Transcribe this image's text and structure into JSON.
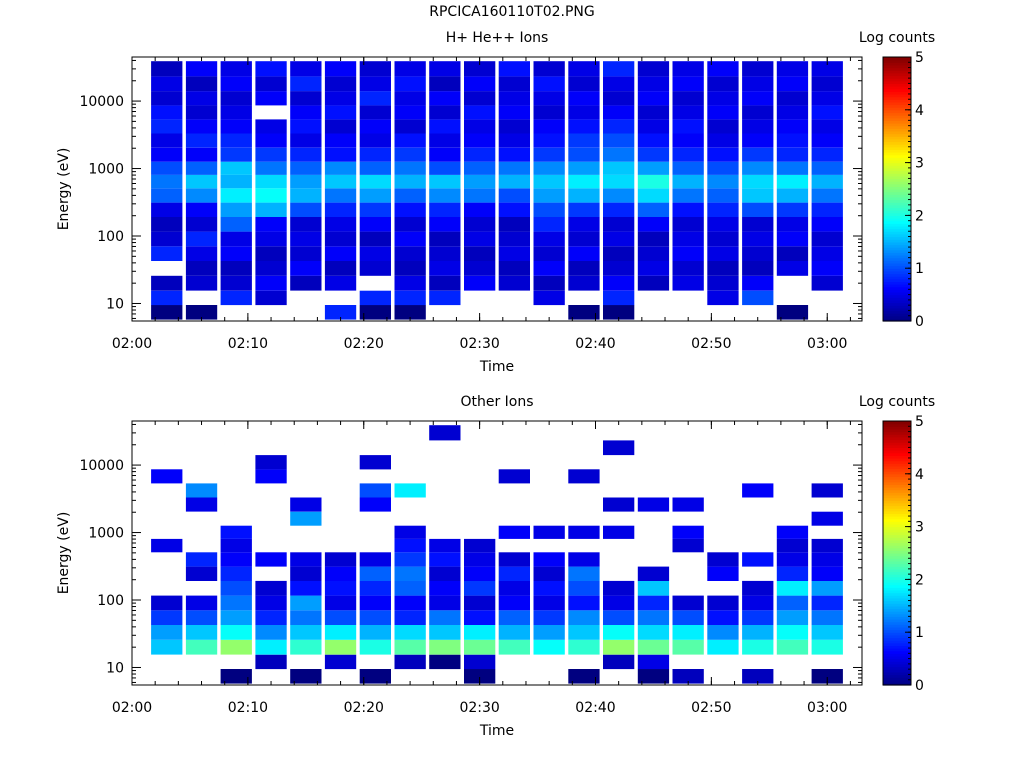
{
  "figure": {
    "title": "RPCICA160110T02.PNG"
  },
  "chart_data": [
    {
      "type": "heatmap",
      "title": "H+ He++ Ions",
      "xlabel": "Time",
      "ylabel": "Energy (eV)",
      "x_ticks": [
        "02:00",
        "02:10",
        "02:20",
        "02:30",
        "02:40",
        "02:50",
        "03:00"
      ],
      "x_range": [
        "02:00",
        "03:03"
      ],
      "y_ticks": [
        "10",
        "100",
        "1000",
        "10000"
      ],
      "y_scale": "log",
      "y_range": [
        5.5,
        45000
      ],
      "colorbar": {
        "label": "Log counts",
        "ticks": [
          "0",
          "1",
          "2",
          "3",
          "4",
          "5"
        ],
        "range": [
          0,
          5
        ],
        "colormap": "jet"
      },
      "time_bins": [
        "02:03",
        "02:06",
        "02:09",
        "02:12",
        "02:15",
        "02:18",
        "02:21",
        "02:24",
        "02:27",
        "02:30",
        "02:33",
        "02:36",
        "02:39",
        "02:42",
        "02:45",
        "02:48",
        "02:51",
        "02:54",
        "02:57",
        "03:00"
      ],
      "energy_bins": [
        7.5,
        12,
        20,
        33,
        55,
        90,
        150,
        245,
        400,
        650,
        1000,
        1600,
        2600,
        4200,
        6800,
        11000,
        18000,
        30000
      ],
      "values": [
        [
          0,
          0.8,
          0.3,
          null,
          0.8,
          0.4,
          0.3,
          0.5,
          1.1,
          1.2,
          1.0,
          0.6,
          0.5,
          0.8,
          0.7,
          0.4,
          0.5,
          0.3
        ],
        [
          0,
          null,
          0.4,
          0.3,
          0.5,
          0.8,
          0.4,
          0.6,
          1.3,
          1.6,
          1.1,
          0.6,
          0.8,
          0.6,
          0.4,
          0.5,
          0.3,
          0.6
        ],
        [
          null,
          0.8,
          0.4,
          0.3,
          0.6,
          0.5,
          1.1,
          1.4,
          1.8,
          1.5,
          1.6,
          0.9,
          0.8,
          0.6,
          0.5,
          0.4,
          0.6,
          0.5
        ],
        [
          null,
          0.4,
          0.6,
          0.4,
          0.3,
          0.5,
          0.6,
          1.5,
          1.9,
          1.7,
          1.2,
          0.9,
          0.6,
          0.5,
          null,
          0.6,
          0.4,
          0.7
        ],
        [
          null,
          null,
          0.3,
          0.6,
          0.4,
          0.5,
          0.4,
          1.0,
          1.5,
          1.4,
          1.1,
          0.8,
          0.5,
          0.7,
          0.6,
          0.4,
          0.8,
          0.5
        ],
        [
          0.8,
          null,
          0.5,
          0.3,
          0.6,
          0.4,
          0.5,
          0.8,
          1.2,
          1.6,
          1.3,
          0.7,
          0.6,
          0.4,
          0.7,
          0.5,
          0.4,
          0.6
        ],
        [
          0,
          0.8,
          null,
          0.4,
          0.5,
          0.3,
          0.6,
          0.9,
          1.4,
          1.7,
          1.1,
          0.8,
          0.5,
          0.6,
          0.4,
          0.8,
          0.5,
          0.4
        ],
        [
          0,
          0.8,
          0.5,
          0.3,
          0.4,
          0.6,
          0.4,
          0.7,
          1.1,
          1.5,
          1.2,
          0.9,
          0.7,
          0.4,
          0.6,
          0.5,
          0.7,
          0.5
        ],
        [
          null,
          0.8,
          0.3,
          0.5,
          0.4,
          0.3,
          0.6,
          0.8,
          1.3,
          1.6,
          1.0,
          0.6,
          0.5,
          0.7,
          0.4,
          0.6,
          0.3,
          0.5
        ],
        [
          null,
          null,
          0.6,
          0.4,
          0.3,
          0.5,
          0.4,
          0.6,
          1.2,
          1.4,
          1.1,
          0.8,
          0.6,
          0.5,
          0.7,
          0.4,
          0.6,
          0.4
        ],
        [
          null,
          null,
          0.4,
          0.3,
          0.5,
          0.4,
          0.3,
          0.7,
          1.0,
          1.5,
          1.2,
          0.7,
          0.5,
          0.4,
          0.6,
          0.5,
          0.4,
          0.7
        ],
        [
          null,
          0.5,
          0.3,
          0.6,
          0.4,
          0.5,
          0.8,
          1.0,
          1.4,
          1.6,
          1.3,
          0.9,
          0.7,
          0.6,
          0.4,
          0.5,
          0.7,
          0.4
        ],
        [
          0,
          null,
          0.4,
          0.3,
          0.6,
          0.4,
          0.5,
          0.9,
          1.5,
          1.8,
          1.4,
          1.0,
          0.9,
          0.7,
          0.5,
          0.6,
          0.4,
          0.5
        ],
        [
          0,
          0.8,
          0.6,
          0.4,
          0.3,
          0.5,
          0.4,
          0.8,
          1.3,
          1.7,
          1.6,
          1.2,
          1.0,
          0.8,
          0.6,
          0.4,
          0.5,
          0.8
        ],
        [
          null,
          null,
          0.3,
          0.5,
          0.4,
          0.3,
          0.6,
          1.1,
          1.7,
          2.0,
          1.4,
          0.9,
          0.7,
          0.5,
          0.4,
          0.6,
          0.5,
          0.4
        ],
        [
          null,
          null,
          0.5,
          0.4,
          0.6,
          0.5,
          0.4,
          0.7,
          1.2,
          1.5,
          1.1,
          0.8,
          0.6,
          0.7,
          0.5,
          0.4,
          0.6,
          0.5
        ],
        [
          null,
          0.5,
          0.4,
          0.3,
          0.5,
          0.4,
          0.5,
          0.8,
          1.1,
          1.3,
          1.0,
          0.7,
          0.5,
          0.4,
          0.6,
          0.5,
          0.4,
          0.6
        ],
        [
          null,
          1.0,
          0.6,
          0.3,
          0.4,
          0.5,
          0.4,
          1.0,
          1.6,
          1.7,
          1.3,
          0.9,
          0.6,
          0.5,
          0.4,
          0.6,
          0.5,
          0.4
        ],
        [
          0,
          null,
          null,
          0.5,
          0.3,
          0.6,
          0.5,
          0.9,
          1.5,
          1.8,
          1.2,
          0.8,
          0.7,
          0.6,
          0.5,
          0.4,
          0.6,
          0.5
        ],
        [
          null,
          null,
          0.4,
          0.6,
          0.5,
          0.4,
          0.6,
          0.8,
          1.2,
          1.5,
          1.1,
          0.8,
          0.6,
          0.5,
          0.7,
          0.5,
          0.4,
          0.5
        ]
      ]
    },
    {
      "type": "heatmap",
      "title": "Other Ions",
      "xlabel": "Time",
      "ylabel": "Energy (eV)",
      "x_ticks": [
        "02:00",
        "02:10",
        "02:20",
        "02:30",
        "02:40",
        "02:50",
        "03:00"
      ],
      "x_range": [
        "02:00",
        "03:03"
      ],
      "y_ticks": [
        "10",
        "100",
        "1000",
        "10000"
      ],
      "y_scale": "log",
      "y_range": [
        5.5,
        45000
      ],
      "colorbar": {
        "label": "Log counts",
        "ticks": [
          "0",
          "1",
          "2",
          "3",
          "4",
          "5"
        ],
        "range": [
          0,
          5
        ],
        "colormap": "jet"
      },
      "time_bins": [
        "02:03",
        "02:06",
        "02:09",
        "02:12",
        "02:15",
        "02:18",
        "02:21",
        "02:24",
        "02:27",
        "02:30",
        "02:33",
        "02:36",
        "02:39",
        "02:42",
        "02:45",
        "02:48",
        "02:51",
        "02:54",
        "02:57",
        "03:00"
      ],
      "energy_bins": [
        7.5,
        12,
        20,
        33,
        55,
        90,
        150,
        245,
        400,
        650,
        1000,
        1600,
        2600,
        4200,
        6800,
        11000,
        18000,
        30000
      ],
      "values": [
        [
          null,
          null,
          1.6,
          1.4,
          0.9,
          0.4,
          null,
          null,
          null,
          0.5,
          null,
          null,
          null,
          null,
          0.6,
          null,
          null,
          null
        ],
        [
          null,
          null,
          2.2,
          1.6,
          1.0,
          0.5,
          null,
          0.4,
          0.8,
          null,
          null,
          null,
          0.5,
          1.3,
          null,
          null,
          null,
          null
        ],
        [
          0,
          null,
          2.6,
          1.9,
          1.4,
          1.2,
          1.0,
          0.8,
          0.6,
          0.5,
          0.7,
          null,
          null,
          null,
          null,
          null,
          null,
          null
        ],
        [
          null,
          0.3,
          1.8,
          1.3,
          0.8,
          0.5,
          0.4,
          null,
          0.6,
          null,
          null,
          null,
          null,
          null,
          0.6,
          0.4,
          null,
          null
        ],
        [
          0,
          null,
          2.1,
          1.6,
          1.2,
          1.4,
          0.7,
          0.4,
          0.5,
          null,
          null,
          1.4,
          0.5,
          null,
          null,
          null,
          null,
          null
        ],
        [
          null,
          0.4,
          2.6,
          1.8,
          1.0,
          0.5,
          0.7,
          0.6,
          0.4,
          null,
          null,
          null,
          null,
          null,
          null,
          null,
          null,
          null
        ],
        [
          0,
          null,
          2.0,
          1.5,
          1.0,
          0.6,
          0.8,
          1.1,
          0.5,
          null,
          null,
          null,
          0.6,
          1.0,
          null,
          0.4,
          null,
          null
        ],
        [
          null,
          0.3,
          2.3,
          1.7,
          0.8,
          0.6,
          1.1,
          1.2,
          0.9,
          0.7,
          0.5,
          null,
          null,
          1.8,
          null,
          null,
          null,
          null
        ],
        [
          null,
          0,
          2.5,
          1.6,
          1.2,
          0.5,
          0.6,
          0.4,
          0.7,
          0.5,
          null,
          null,
          null,
          null,
          null,
          null,
          null,
          0.4
        ],
        [
          0,
          0.4,
          2.4,
          1.8,
          0.7,
          0.4,
          0.9,
          0.6,
          0.5,
          0.4,
          null,
          null,
          null,
          null,
          null,
          null,
          null,
          null
        ],
        [
          null,
          null,
          2.2,
          1.5,
          1.1,
          0.6,
          0.5,
          0.8,
          0.4,
          null,
          0.6,
          null,
          null,
          null,
          0.4,
          null,
          null,
          null
        ],
        [
          null,
          null,
          1.9,
          1.4,
          0.9,
          0.5,
          0.7,
          0.4,
          0.6,
          null,
          0.5,
          null,
          null,
          null,
          null,
          null,
          null,
          null
        ],
        [
          0,
          null,
          2.1,
          1.6,
          1.3,
          0.7,
          1.0,
          1.2,
          0.5,
          null,
          0.5,
          null,
          null,
          null,
          0.4,
          null,
          null,
          null
        ],
        [
          null,
          0.3,
          2.6,
          1.9,
          1.0,
          0.5,
          0.4,
          null,
          null,
          null,
          0.5,
          null,
          0.4,
          null,
          null,
          null,
          0.4,
          null
        ],
        [
          0,
          0.5,
          2.4,
          1.7,
          1.2,
          0.8,
          1.6,
          0.4,
          null,
          null,
          null,
          null,
          0.5,
          null,
          null,
          null,
          null,
          null
        ],
        [
          0.3,
          null,
          2.3,
          1.8,
          1.0,
          0.4,
          null,
          null,
          null,
          0.4,
          0.6,
          null,
          0.5,
          null,
          null,
          null,
          null,
          null
        ],
        [
          null,
          null,
          1.8,
          1.3,
          0.7,
          0.4,
          null,
          0.6,
          0.4,
          null,
          null,
          null,
          null,
          null,
          null,
          null,
          null,
          null
        ],
        [
          0.3,
          null,
          2.0,
          1.5,
          0.9,
          0.5,
          0.4,
          null,
          0.7,
          null,
          null,
          null,
          null,
          0.6,
          null,
          null,
          null,
          null
        ],
        [
          null,
          null,
          2.2,
          1.9,
          1.4,
          1.1,
          1.8,
          0.8,
          0.5,
          0.4,
          0.6,
          null,
          null,
          null,
          null,
          null,
          null,
          null
        ],
        [
          0,
          null,
          2.0,
          1.6,
          1.2,
          0.8,
          1.4,
          0.6,
          0.5,
          0.4,
          null,
          0.5,
          null,
          0.4,
          null,
          null,
          null,
          null
        ]
      ]
    }
  ]
}
